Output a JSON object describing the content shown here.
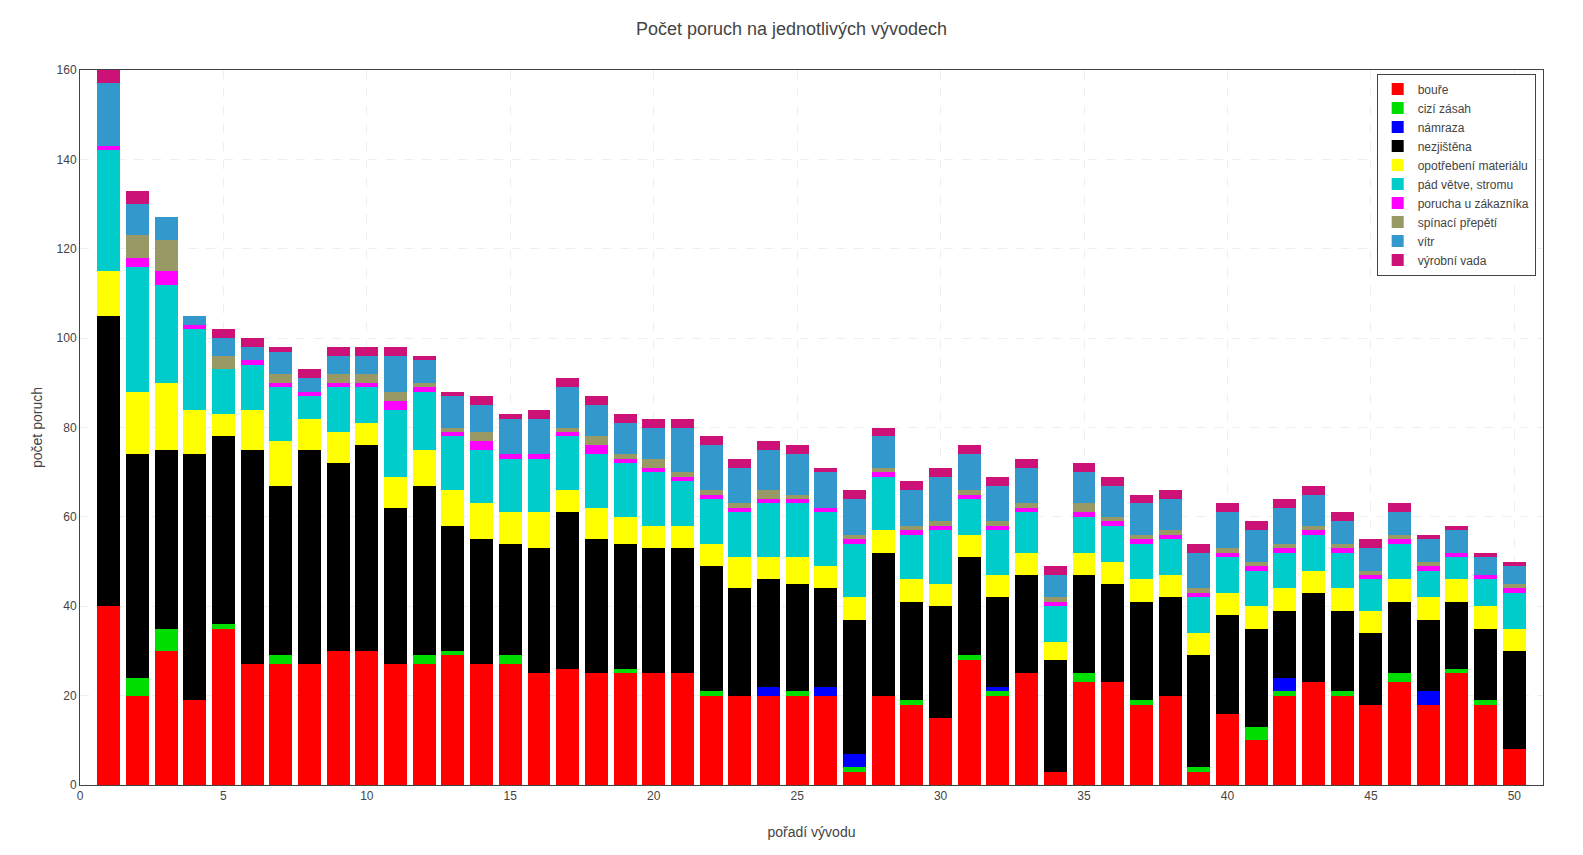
{
  "chart_data": {
    "type": "bar",
    "stacked": true,
    "title": "Počet poruch na jednotlivých vývodech",
    "xlabel": "pořadí vývodu",
    "ylabel": "počet poruch",
    "x": [
      1,
      2,
      3,
      4,
      5,
      6,
      7,
      8,
      9,
      10,
      11,
      12,
      13,
      14,
      15,
      16,
      17,
      18,
      19,
      20,
      21,
      22,
      23,
      24,
      25,
      26,
      27,
      28,
      29,
      30,
      31,
      32,
      33,
      34,
      35,
      36,
      37,
      38,
      39,
      40,
      41,
      42,
      43,
      44,
      45,
      46,
      47,
      48,
      49,
      50
    ],
    "xlim": [
      0,
      51
    ],
    "xticks": [
      0,
      5,
      10,
      15,
      20,
      25,
      30,
      35,
      40,
      45,
      50
    ],
    "ylim": [
      0,
      160
    ],
    "yticks": [
      0,
      20,
      40,
      60,
      80,
      100,
      120,
      140,
      160
    ],
    "grid": true,
    "legend": "upper right",
    "series": [
      {
        "name": "bouře",
        "color": "#ff0000",
        "values": [
          40,
          20,
          30,
          19,
          35,
          27,
          27,
          27,
          30,
          30,
          27,
          27,
          29,
          27,
          27,
          25,
          26,
          25,
          25,
          25,
          25,
          20,
          20,
          20,
          20,
          20,
          3,
          20,
          18,
          15,
          28,
          20,
          25,
          3,
          23,
          23,
          18,
          20,
          3,
          16,
          10,
          20,
          23,
          20,
          18,
          23,
          18,
          25,
          18,
          8
        ]
      },
      {
        "name": "cizí zásah",
        "color": "#00dd00",
        "values": [
          0,
          4,
          5,
          0,
          1,
          0,
          2,
          0,
          0,
          0,
          0,
          2,
          1,
          0,
          2,
          0,
          0,
          0,
          1,
          0,
          0,
          1,
          0,
          0,
          1,
          0,
          1,
          0,
          1,
          0,
          1,
          1,
          0,
          0,
          2,
          0,
          1,
          0,
          1,
          0,
          3,
          1,
          0,
          1,
          0,
          2,
          0,
          1,
          1,
          0
        ]
      },
      {
        "name": "námraza",
        "color": "#0000ff",
        "values": [
          0,
          0,
          0,
          0,
          0,
          0,
          0,
          0,
          0,
          0,
          0,
          0,
          0,
          0,
          0,
          0,
          0,
          0,
          0,
          0,
          0,
          0,
          0,
          2,
          0,
          2,
          3,
          0,
          0,
          0,
          0,
          1,
          0,
          0,
          0,
          0,
          0,
          0,
          0,
          0,
          0,
          3,
          0,
          0,
          0,
          0,
          3,
          0,
          0,
          0
        ]
      },
      {
        "name": "nezjištěna",
        "color": "#000000",
        "values": [
          65,
          50,
          40,
          55,
          42,
          48,
          38,
          48,
          42,
          46,
          35,
          38,
          28,
          28,
          25,
          28,
          35,
          30,
          28,
          28,
          28,
          28,
          24,
          24,
          24,
          22,
          30,
          32,
          22,
          25,
          22,
          20,
          22,
          25,
          22,
          22,
          22,
          22,
          25,
          22,
          22,
          15,
          20,
          18,
          16,
          16,
          16,
          15,
          16,
          22
        ]
      },
      {
        "name": "opotřebení materiálu",
        "color": "#ffff00",
        "values": [
          10,
          14,
          15,
          10,
          5,
          9,
          10,
          7,
          7,
          5,
          7,
          8,
          8,
          8,
          7,
          8,
          5,
          7,
          6,
          5,
          5,
          5,
          7,
          5,
          6,
          5,
          5,
          5,
          5,
          5,
          5,
          5,
          5,
          4,
          5,
          5,
          5,
          5,
          5,
          5,
          5,
          5,
          5,
          5,
          5,
          5,
          5,
          5,
          5,
          5
        ]
      },
      {
        "name": "pád větve, stromu",
        "color": "#00cccc",
        "values": [
          27,
          28,
          22,
          18,
          10,
          10,
          12,
          5,
          10,
          8,
          15,
          13,
          12,
          12,
          12,
          12,
          12,
          12,
          12,
          12,
          10,
          10,
          10,
          12,
          12,
          12,
          12,
          12,
          10,
          12,
          8,
          10,
          9,
          8,
          8,
          8,
          8,
          8,
          8,
          8,
          8,
          8,
          8,
          8,
          7,
          8,
          6,
          5,
          6,
          8
        ]
      },
      {
        "name": "porucha u zákazníka",
        "color": "#ff00ff",
        "values": [
          1,
          2,
          3,
          1,
          0,
          1,
          1,
          1,
          1,
          1,
          2,
          1,
          1,
          2,
          1,
          1,
          1,
          2,
          1,
          1,
          1,
          1,
          1,
          1,
          1,
          1,
          1,
          1,
          1,
          1,
          1,
          1,
          1,
          1,
          1,
          1,
          1,
          1,
          1,
          1,
          1,
          1,
          1,
          1,
          1,
          1,
          1,
          1,
          1,
          1
        ]
      },
      {
        "name": "spínací přepětí",
        "color": "#999966",
        "values": [
          0,
          5,
          7,
          0,
          3,
          0,
          2,
          0,
          2,
          2,
          2,
          1,
          1,
          2,
          0,
          0,
          1,
          2,
          1,
          2,
          1,
          1,
          1,
          2,
          1,
          0,
          1,
          1,
          1,
          1,
          1,
          1,
          1,
          1,
          2,
          1,
          1,
          1,
          1,
          1,
          1,
          1,
          1,
          1,
          1,
          1,
          1,
          0,
          0,
          1
        ]
      },
      {
        "name": "vítr",
        "color": "#3399cc",
        "values": [
          14,
          7,
          5,
          2,
          4,
          3,
          5,
          3,
          4,
          4,
          8,
          5,
          7,
          6,
          8,
          8,
          9,
          7,
          7,
          7,
          10,
          10,
          8,
          9,
          9,
          8,
          8,
          7,
          8,
          10,
          8,
          8,
          8,
          5,
          7,
          7,
          7,
          7,
          8,
          8,
          7,
          8,
          7,
          5,
          5,
          5,
          5,
          5,
          4,
          4
        ]
      },
      {
        "name": "výrobní vada",
        "color": "#cc1177",
        "values": [
          3,
          3,
          0,
          0,
          2,
          2,
          1,
          2,
          2,
          2,
          2,
          1,
          1,
          2,
          1,
          2,
          2,
          2,
          2,
          2,
          2,
          2,
          2,
          2,
          2,
          1,
          2,
          2,
          2,
          2,
          2,
          2,
          2,
          2,
          2,
          2,
          2,
          2,
          2,
          2,
          2,
          2,
          2,
          2,
          2,
          2,
          1,
          1,
          1,
          1
        ]
      }
    ]
  }
}
